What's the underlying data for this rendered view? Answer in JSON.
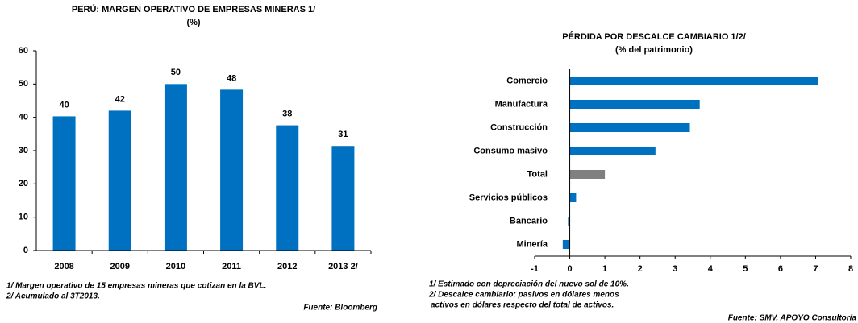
{
  "chart_data": [
    {
      "type": "bar",
      "orientation": "vertical",
      "title": "PERÚ: MARGEN OPERATIVO DE EMPRESAS MINERAS 1/",
      "subtitle": "(%)",
      "categories": [
        "2008",
        "2009",
        "2010",
        "2011",
        "2012",
        "2013 2/"
      ],
      "values": [
        40.3,
        42,
        50,
        48.3,
        37.6,
        31.4
      ],
      "value_labels": [
        "40",
        "42",
        "50",
        "48",
        "38",
        "31"
      ],
      "color": "#0070c0",
      "ylim": [
        0,
        60
      ],
      "yticks": [
        0,
        10,
        20,
        30,
        40,
        50,
        60
      ],
      "notes": [
        "1/ Margen operativo de 15 empresas mineras que cotizan en la BVL.",
        "2/ Acumulado al 3T2013."
      ],
      "source": "Fuente: Bloomberg"
    },
    {
      "type": "bar",
      "orientation": "horizontal",
      "title": "PÉRDIDA POR DESCALCE CAMBIARIO  1/2/",
      "subtitle": "(% del patrimonio)",
      "categories": [
        "Comercio",
        "Manufactura",
        "Construcción",
        "Consumo masivo",
        "Total",
        "Servicios públicos",
        "Bancario",
        "Minería"
      ],
      "values": [
        7.08,
        3.7,
        3.42,
        2.44,
        1.0,
        0.18,
        -0.05,
        -0.2
      ],
      "colors": [
        "#0070c0",
        "#0070c0",
        "#0070c0",
        "#0070c0",
        "#808080",
        "#0070c0",
        "#0070c0",
        "#0070c0"
      ],
      "xlim": [
        -1,
        8
      ],
      "xticks": [
        -1,
        0,
        1,
        2,
        3,
        4,
        5,
        6,
        7,
        8
      ],
      "notes": [
        "1/ Estimado con depreciación del nuevo sol de 10%.",
        "2/ Descalce cambiario: pasivos en dólares menos",
        "activos en dólares respecto del total de activos."
      ],
      "source": "Fuente: SMV. APOYO Consultoría"
    }
  ]
}
